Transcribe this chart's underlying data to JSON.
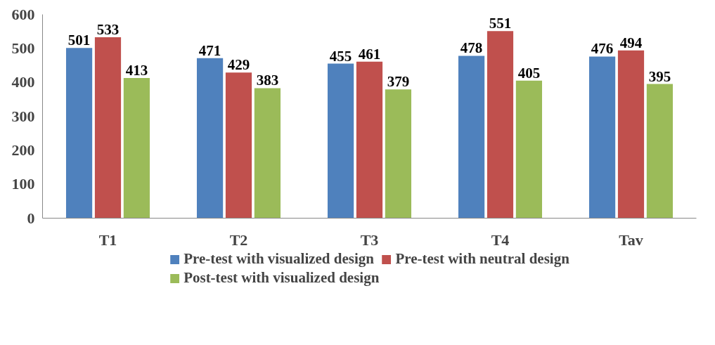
{
  "chart_data": {
    "type": "bar",
    "categories": [
      "T1",
      "T2",
      "T3",
      "T4",
      "Tav"
    ],
    "series": [
      {
        "name": "Pre-test with visualized design",
        "color": "#4f81bd",
        "values": [
          501,
          471,
          455,
          478,
          476
        ]
      },
      {
        "name": "Pre-test with neutral design",
        "color": "#c0504d",
        "values": [
          533,
          429,
          461,
          551,
          494
        ]
      },
      {
        "name": "Post-test with visualized design",
        "color": "#9bbb59",
        "values": [
          413,
          383,
          379,
          405,
          395
        ]
      }
    ],
    "ylim": [
      0,
      600
    ],
    "yticks": [
      0,
      100,
      200,
      300,
      400,
      500,
      600
    ],
    "data_labels": true,
    "grid": false,
    "legend": "bottom"
  }
}
